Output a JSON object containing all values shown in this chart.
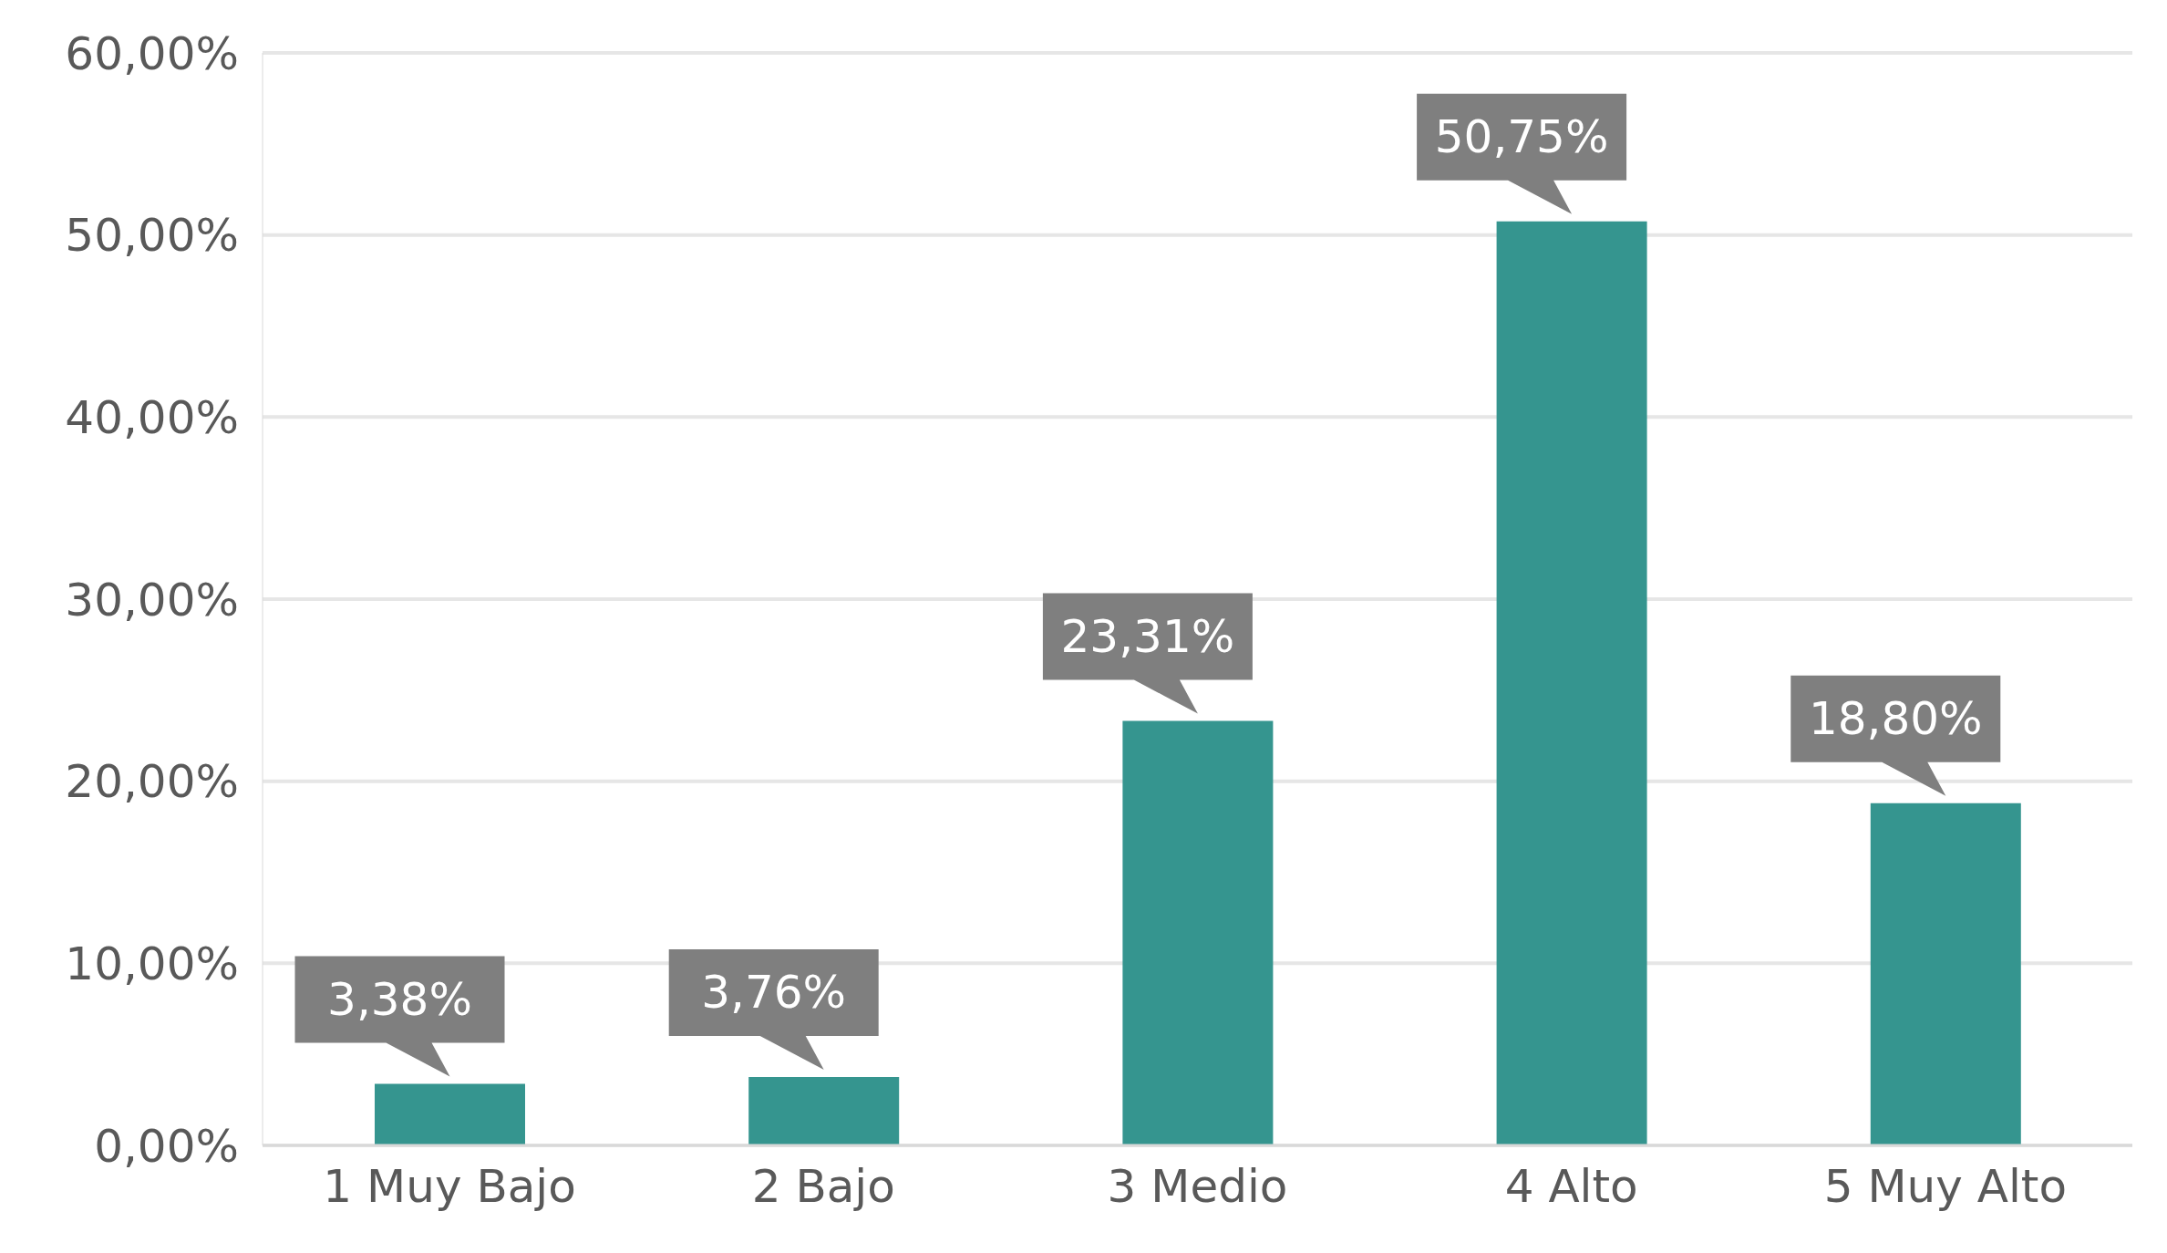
{
  "chart_data": {
    "type": "bar",
    "categories": [
      "1 Muy Bajo",
      "2 Bajo",
      "3 Medio",
      "4 Alto",
      "5 Muy Alto"
    ],
    "values": [
      3.38,
      3.76,
      23.31,
      50.75,
      18.8
    ],
    "value_labels": [
      "3,38%",
      "3,76%",
      "23,31%",
      "50,75%",
      "18,80%"
    ],
    "color": "#35958f",
    "ylim": [
      0,
      60
    ],
    "yticks": [
      {
        "value": 0,
        "label": "0,00%"
      },
      {
        "value": 10,
        "label": "10,00%"
      },
      {
        "value": 20,
        "label": "20,00%"
      },
      {
        "value": 30,
        "label": "30,00%"
      },
      {
        "value": 40,
        "label": "40,00%"
      },
      {
        "value": 50,
        "label": "50,00%"
      },
      {
        "value": 60,
        "label": "60,00%"
      }
    ],
    "grid": "y",
    "legend": false
  }
}
